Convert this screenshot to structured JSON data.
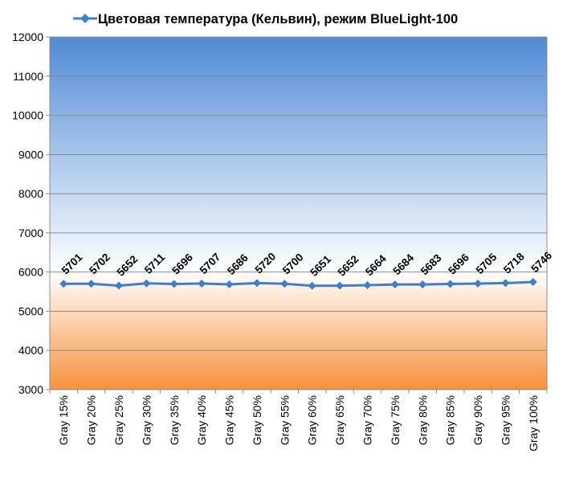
{
  "chart_data": {
    "type": "line",
    "title": "",
    "xlabel": "",
    "ylabel": "",
    "ylim": [
      3000,
      12000
    ],
    "ytick_step": 1000,
    "grid": true,
    "legend_position": "top",
    "categories": [
      "Gray 15%",
      "Gray 20%",
      "Gray 25%",
      "Gray 30%",
      "Gray 35%",
      "Gray 40%",
      "Gray 45%",
      "Gray 50%",
      "Gray 55%",
      "Gray 60%",
      "Gray 65%",
      "Gray 70%",
      "Gray 75%",
      "Gray 80%",
      "Gray 85%",
      "Gray 90%",
      "Gray 95%",
      "Gray 100%"
    ],
    "series": [
      {
        "name": "Цветовая температура (Кельвин), режим BlueLight-100",
        "color": "#3d7fc8",
        "values": [
          5701,
          5702,
          5652,
          5711,
          5696,
          5707,
          5686,
          5720,
          5700,
          5651,
          5652,
          5664,
          5684,
          5683,
          5696,
          5705,
          5718,
          5746
        ]
      }
    ],
    "background_gradient": {
      "top": "#4f8ad6",
      "middle": "#ffffff",
      "bottom": "#f7903c",
      "split_value": 6000
    }
  }
}
